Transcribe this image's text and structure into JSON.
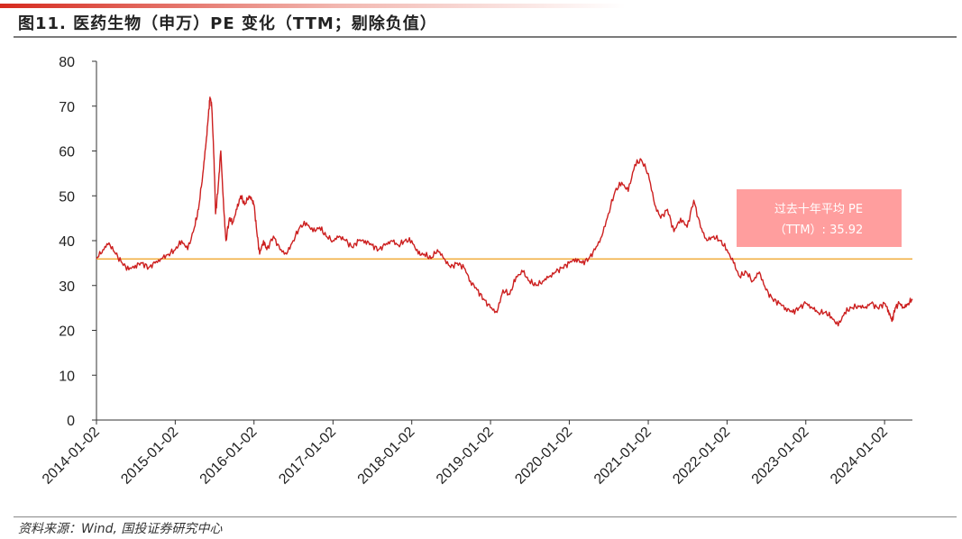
{
  "header": {
    "title": "图11. 医药生物（申万）PE 变化（TTM；剔除负值）"
  },
  "footer": {
    "source": "资料来源：Wind, 国投证券研究中心"
  },
  "colors": {
    "series": "#cc1f1f",
    "mean_line": "#f0a830",
    "annotation_bg": "#ff9e9e",
    "accent": "#d62a1e"
  },
  "chart_data": {
    "type": "line",
    "title": "",
    "xlabel": "",
    "ylabel": "",
    "ylim": [
      0,
      80
    ],
    "yticks": [
      "0",
      "10",
      "20",
      "30",
      "40",
      "50",
      "60",
      "70",
      "80"
    ],
    "xlim": [
      "2014-01-02",
      "2024-05-10"
    ],
    "xticks": [
      "2014-01-02",
      "2015-01-02",
      "2016-01-02",
      "2017-01-02",
      "2018-01-02",
      "2019-01-02",
      "2020-01-02",
      "2021-01-02",
      "2022-01-02",
      "2023-01-02",
      "2024-01-02"
    ],
    "grid": false,
    "legend": "none",
    "annotation": {
      "line1": "过去十年平均 PE",
      "line2": "（TTM）: 35.92"
    },
    "mean_value": 35.92,
    "series": [
      {
        "x": [
          "2014-01-02",
          "2014-02-01",
          "2014-03-01",
          "2014-04-01",
          "2014-05-01",
          "2014-06-01",
          "2014-07-01",
          "2014-08-01",
          "2014-09-01",
          "2014-10-01",
          "2014-11-01",
          "2014-12-01",
          "2015-01-02",
          "2015-02-01",
          "2015-03-01",
          "2015-04-01",
          "2015-04-20",
          "2015-05-10",
          "2015-05-25",
          "2015-06-05",
          "2015-06-12",
          "2015-06-20",
          "2015-07-01",
          "2015-07-08",
          "2015-07-20",
          "2015-08-01",
          "2015-08-15",
          "2015-08-25",
          "2015-09-10",
          "2015-09-25",
          "2015-10-15",
          "2015-11-01",
          "2015-11-20",
          "2015-12-10",
          "2015-12-25",
          "2016-01-02",
          "2016-01-15",
          "2016-01-28",
          "2016-02-15",
          "2016-03-01",
          "2016-04-01",
          "2016-05-01",
          "2016-06-01",
          "2016-07-01",
          "2016-08-01",
          "2016-09-01",
          "2016-10-01",
          "2016-11-01",
          "2016-12-01",
          "2017-01-02",
          "2017-02-01",
          "2017-03-01",
          "2017-04-01",
          "2017-05-01",
          "2017-06-01",
          "2017-07-01",
          "2017-08-01",
          "2017-09-01",
          "2017-10-01",
          "2017-11-01",
          "2017-12-01",
          "2018-01-02",
          "2018-02-01",
          "2018-03-01",
          "2018-04-01",
          "2018-05-01",
          "2018-06-01",
          "2018-07-01",
          "2018-08-01",
          "2018-09-01",
          "2018-10-01",
          "2018-11-01",
          "2018-12-01",
          "2019-01-02",
          "2019-02-01",
          "2019-03-01",
          "2019-04-01",
          "2019-05-01",
          "2019-06-01",
          "2019-07-01",
          "2019-08-01",
          "2019-09-01",
          "2019-10-01",
          "2019-11-01",
          "2019-12-01",
          "2020-01-02",
          "2020-02-01",
          "2020-03-01",
          "2020-04-01",
          "2020-05-01",
          "2020-06-01",
          "2020-07-01",
          "2020-08-01",
          "2020-09-01",
          "2020-10-01",
          "2020-11-01",
          "2020-12-01",
          "2021-01-02",
          "2021-02-01",
          "2021-03-01",
          "2021-04-01",
          "2021-05-01",
          "2021-06-01",
          "2021-07-01",
          "2021-08-01",
          "2021-09-01",
          "2021-10-01",
          "2021-11-01",
          "2021-12-01",
          "2022-01-02",
          "2022-02-01",
          "2022-03-01",
          "2022-04-01",
          "2022-05-01",
          "2022-06-01",
          "2022-07-01",
          "2022-08-01",
          "2022-09-01",
          "2022-10-01",
          "2022-11-01",
          "2022-12-01",
          "2023-01-02",
          "2023-02-01",
          "2023-03-01",
          "2023-04-01",
          "2023-05-01",
          "2023-06-01",
          "2023-07-01",
          "2023-08-01",
          "2023-09-01",
          "2023-10-01",
          "2023-11-01",
          "2023-12-01",
          "2024-01-02",
          "2024-01-20",
          "2024-02-05",
          "2024-02-20",
          "2024-03-10",
          "2024-04-01",
          "2024-04-20",
          "2024-05-10"
        ],
        "values": [
          36,
          38,
          39.5,
          37,
          35,
          33.5,
          34.5,
          35,
          34,
          35,
          36,
          37,
          38,
          40,
          38,
          43,
          47,
          55,
          62,
          68,
          72,
          70,
          58,
          46,
          52,
          60,
          47,
          40,
          45,
          44,
          47,
          50,
          48,
          50,
          49,
          48,
          42,
          37,
          40,
          38,
          41,
          38,
          37,
          40,
          43,
          44,
          42,
          43,
          41,
          40,
          41,
          40,
          38.5,
          40,
          40,
          39,
          38,
          39,
          40,
          39,
          40,
          40,
          37,
          37,
          36,
          38,
          36,
          34,
          35,
          34,
          31,
          29,
          27,
          25,
          24,
          29,
          28,
          32,
          33,
          31,
          30,
          31,
          32,
          33,
          34,
          35,
          36,
          35,
          36,
          38,
          41,
          46,
          51,
          53,
          51,
          57,
          58,
          55,
          48,
          45,
          47,
          42,
          45,
          43,
          49,
          43,
          40,
          41,
          40,
          38,
          35,
          32,
          33,
          31,
          33,
          29,
          27,
          26,
          25,
          24,
          25,
          26,
          25,
          24,
          24,
          23,
          21,
          24,
          25,
          25.5,
          25,
          26,
          25,
          26,
          24.5,
          22,
          25,
          26,
          25,
          26,
          27
        ]
      }
    ]
  }
}
